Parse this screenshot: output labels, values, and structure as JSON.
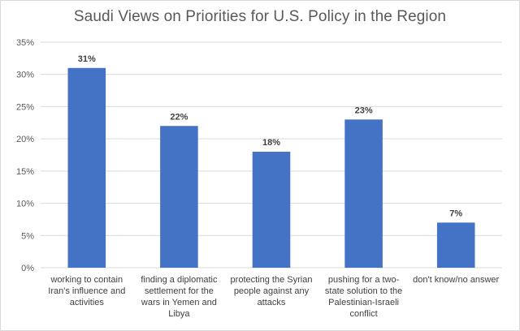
{
  "chart_data": {
    "type": "bar",
    "title": "Saudi Views on Priorities for U.S. Policy in the Region",
    "categories": [
      "working to contain Iran's influence and activities",
      "finding a diplomatic settlement for the wars in Yemen and Libya",
      "protecting the Syrian people against any attacks",
      "pushing for a two-state solution to the Palestinian-Israeli conflict",
      "don't know/no answer"
    ],
    "category_lines": [
      [
        "working to contain",
        "Iran's influence and",
        "activities"
      ],
      [
        "finding a diplomatic",
        "settlement for the",
        "wars in Yemen and",
        "Libya"
      ],
      [
        "protecting the Syrian",
        "people against any",
        "attacks"
      ],
      [
        "pushing for a two-",
        "state solution to the",
        "Palestinian-Israeli",
        "conflict"
      ],
      [
        "don't know/no answer"
      ]
    ],
    "values": [
      31,
      22,
      18,
      23,
      7
    ],
    "data_labels": [
      "31%",
      "22%",
      "18%",
      "23%",
      "7%"
    ],
    "y_ticks": [
      0,
      5,
      10,
      15,
      20,
      25,
      30,
      35
    ],
    "y_tick_labels": [
      "0%",
      "5%",
      "10%",
      "15%",
      "20%",
      "25%",
      "30%",
      "35%"
    ],
    "ylim": [
      0,
      35
    ],
    "grid": true,
    "legend": false,
    "colors": {
      "bar": "#4472c4",
      "grid": "#d9d9d9",
      "axis_text": "#595959",
      "label_text": "#404040"
    }
  }
}
